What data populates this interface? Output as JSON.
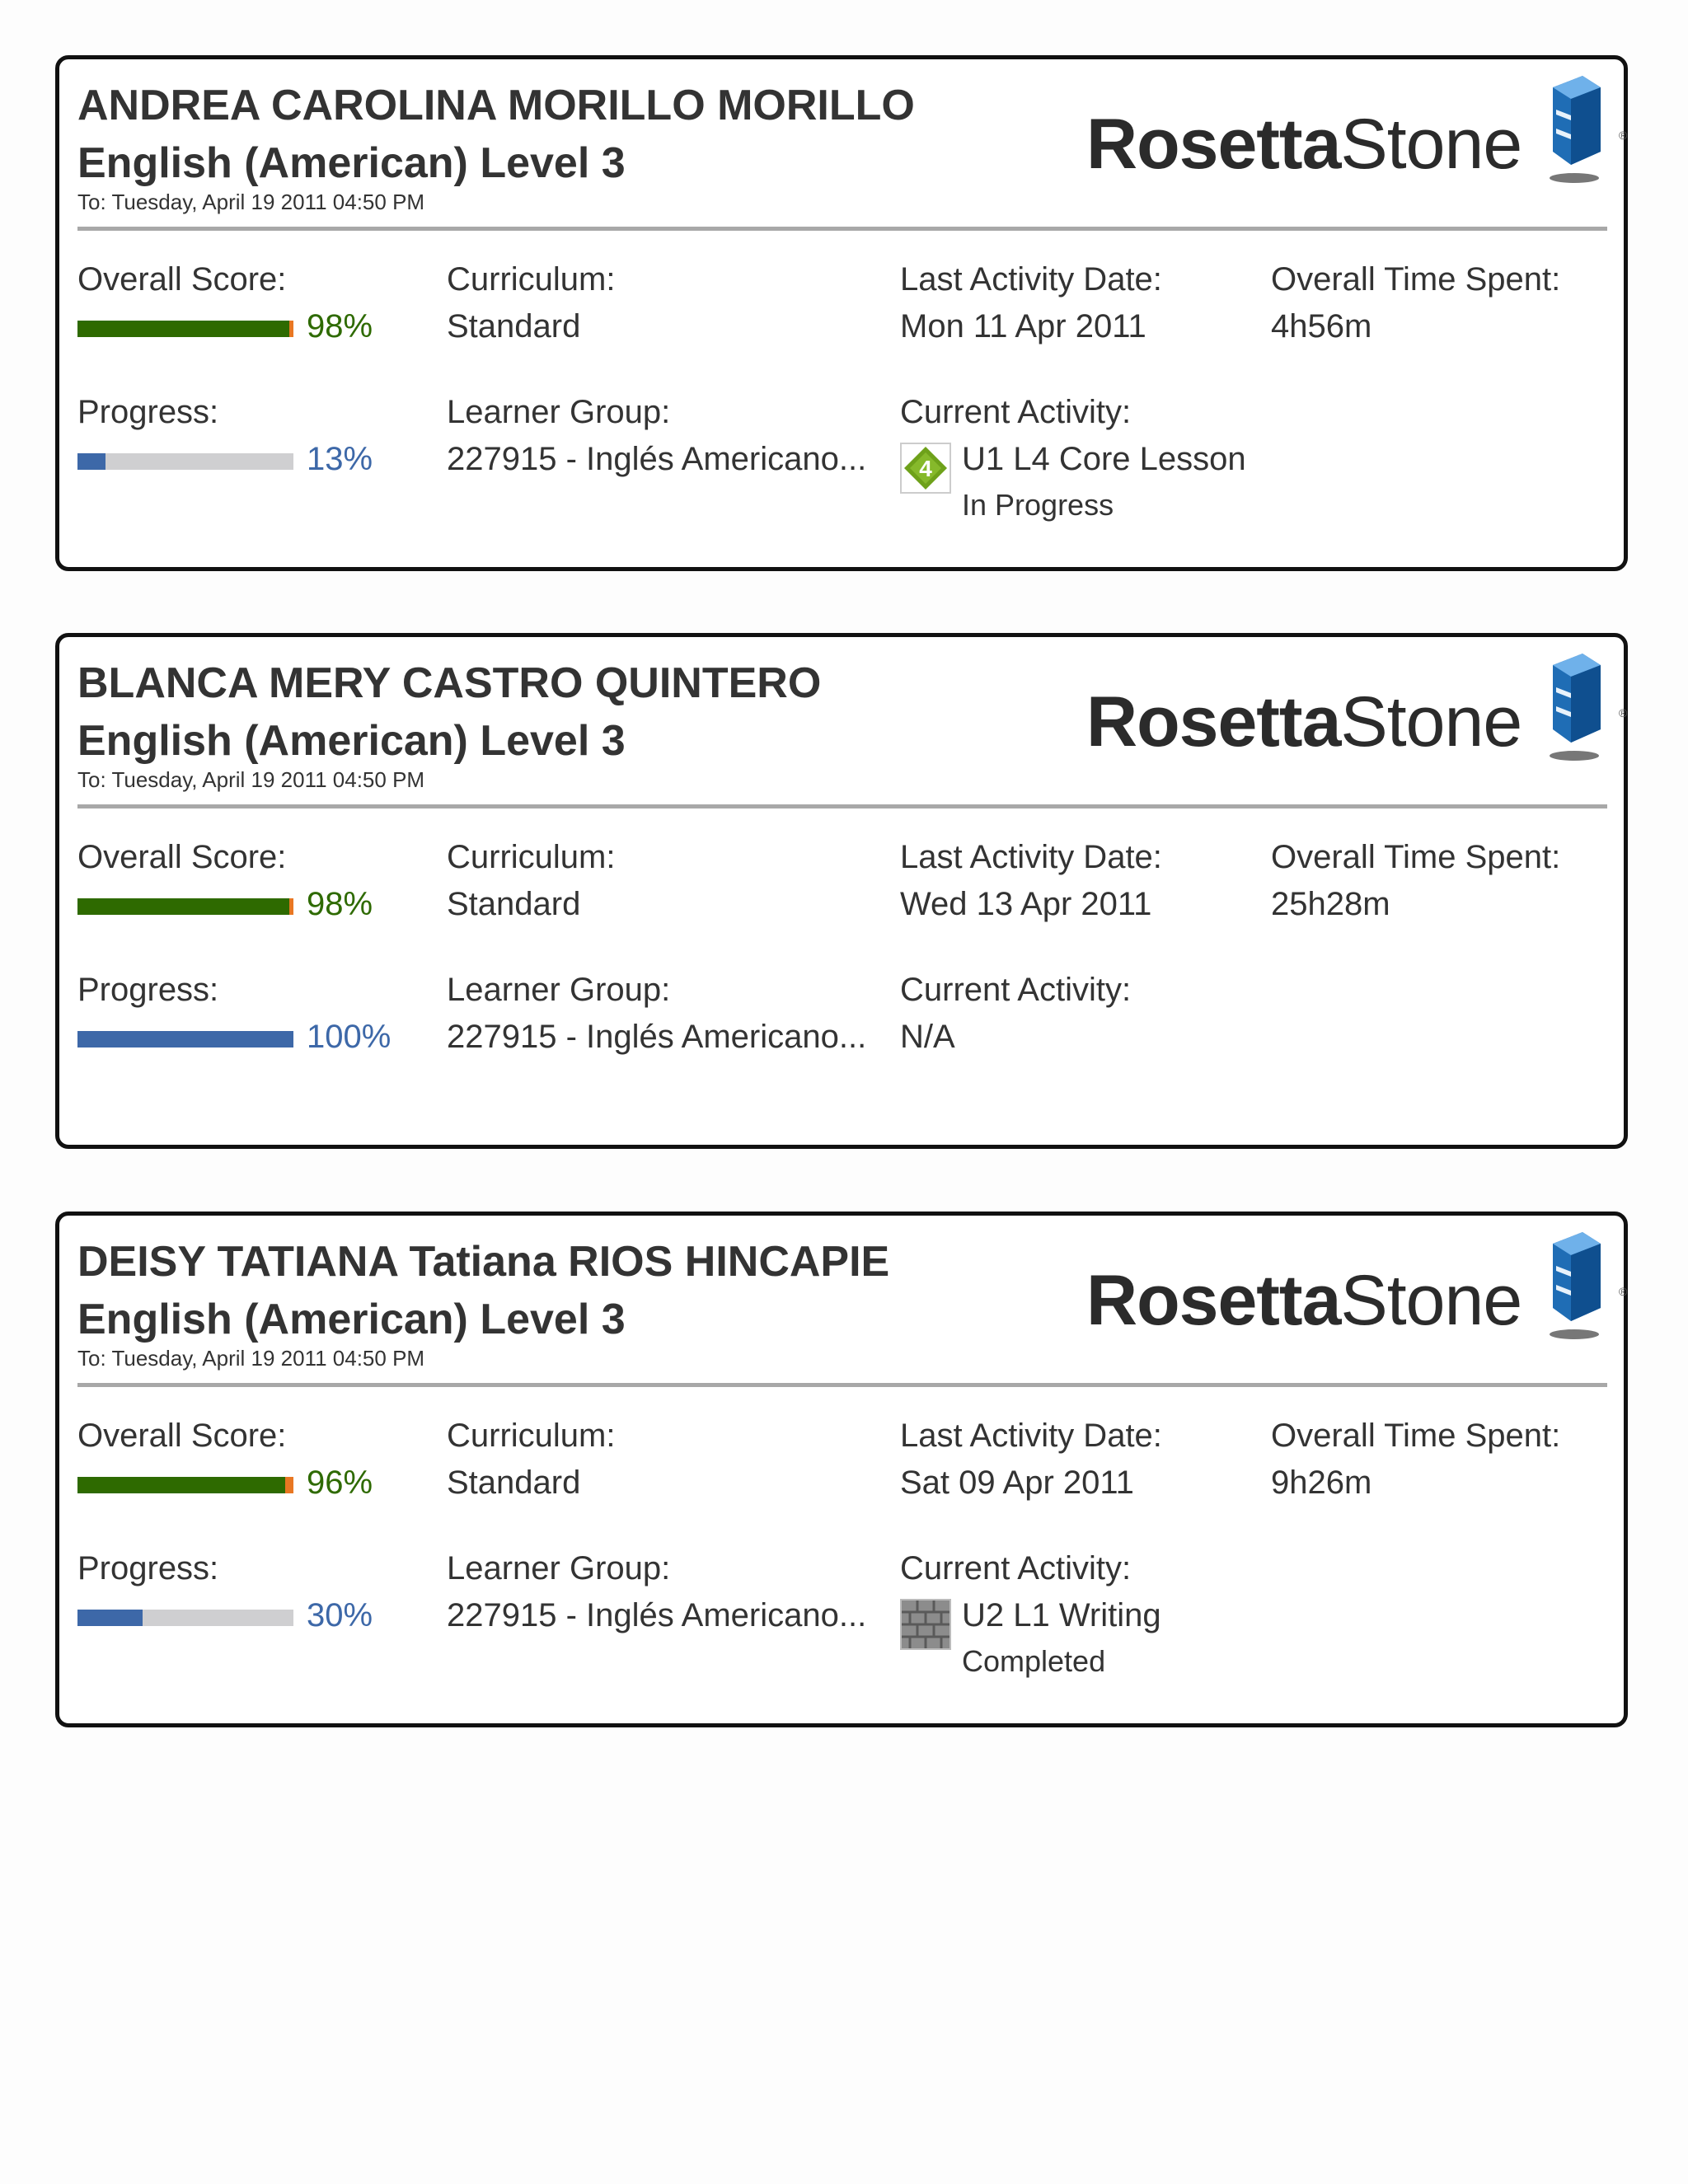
{
  "labels": {
    "overall_score": "Overall Score:",
    "curriculum": "Curriculum:",
    "last_activity_date": "Last Activity Date:",
    "overall_time_spent": "Overall Time Spent:",
    "progress": "Progress:",
    "learner_group": "Learner Group:",
    "current_activity": "Current Activity:"
  },
  "logo": {
    "part1": "Rosetta",
    "part2": "Stone",
    "reg": "®",
    "cube_icon": "rosetta-cube-icon"
  },
  "colors": {
    "score_green": "#2e6a00",
    "score_orange": "#e87722",
    "progress_blue": "#3d68a8",
    "bar_gray": "#cfcfd1"
  },
  "learners": [
    {
      "name": "ANDREA CAROLINA MORILLO MORILLO",
      "course": "English (American) Level 3",
      "date": "To: Tuesday, April 19 2011 04:50 PM",
      "overall_score": "98%",
      "score_value": 98,
      "curriculum": "Standard",
      "last_activity_date": "Mon 11 Apr 2011",
      "overall_time_spent": "4h56m",
      "progress": "13%",
      "progress_value": 13,
      "learner_group": "227915 - Inglés Americano...",
      "current_activity": "U1 L4 Core Lesson",
      "activity_status": "In Progress",
      "activity_icon": "core-lesson-diamond-icon",
      "activity_icon_text": "4"
    },
    {
      "name": "BLANCA MERY CASTRO QUINTERO",
      "course": "English (American) Level 3",
      "date": "To: Tuesday, April 19 2011 04:50 PM",
      "overall_score": "98%",
      "score_value": 98,
      "curriculum": "Standard",
      "last_activity_date": "Wed 13 Apr 2011",
      "overall_time_spent": "25h28m",
      "progress": "100%",
      "progress_value": 100,
      "learner_group": "227915 - Inglés Americano...",
      "current_activity": "N/A"
    },
    {
      "name": "DEISY TATIANA Tatiana RIOS HINCAPIE",
      "course": "English (American) Level 3",
      "date": "To: Tuesday, April 19 2011 04:50 PM",
      "overall_score": "96%",
      "score_value": 96,
      "curriculum": "Standard",
      "last_activity_date": "Sat 09 Apr 2011",
      "overall_time_spent": "9h26m",
      "progress": "30%",
      "progress_value": 30,
      "learner_group": "227915 - Inglés Americano...",
      "current_activity": "U2 L1 Writing",
      "activity_status": "Completed",
      "activity_icon": "writing-brick-icon"
    }
  ]
}
